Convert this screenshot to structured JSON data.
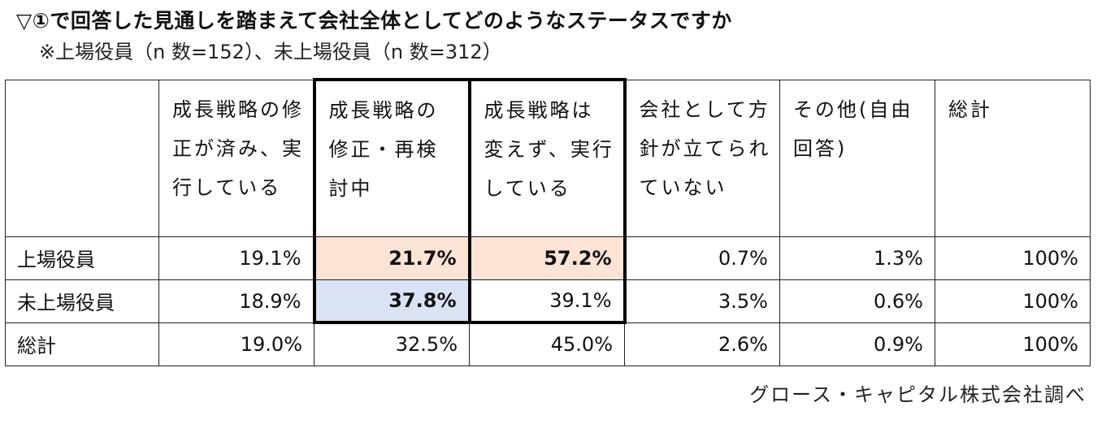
{
  "title": "▽①で回答した見通しを踏まえて会社全体としてどのようなステータスですか",
  "subtitle": "※上場役員（n 数=152）、未上場役員（n 数=312）",
  "table": {
    "headers": [
      "",
      "成長戦略の修正が済み、実行している",
      "成長戦略の修正・再検討中",
      "成長戦略は変えず、実行している",
      "会社として方針が立てられていない",
      "その他(自由回答)",
      "総計"
    ],
    "rows": [
      {
        "label": "上場役員",
        "values": [
          "19.1%",
          "21.7%",
          "57.2%",
          "0.7%",
          "1.3%",
          "100%"
        ]
      },
      {
        "label": "未上場役員",
        "values": [
          "18.9%",
          "37.8%",
          "39.1%",
          "3.5%",
          "0.6%",
          "100%"
        ]
      },
      {
        "label": "総計",
        "values": [
          "19.0%",
          "32.5%",
          "45.0%",
          "2.6%",
          "0.9%",
          "100%"
        ]
      }
    ]
  },
  "highlight_colors": {
    "peach": "#fbe3d6",
    "blue": "#dae3f3"
  },
  "source": "グロース・キャピタル株式会社調べ"
}
